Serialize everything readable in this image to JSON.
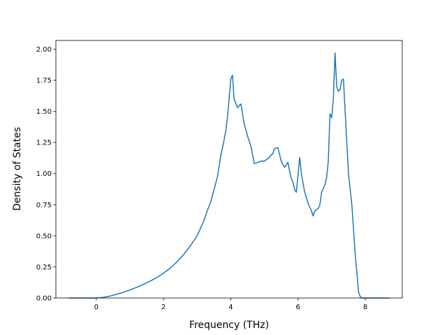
{
  "chart_data": {
    "type": "line",
    "title": "",
    "xlabel": "Frequency (THz)",
    "ylabel": "Density of States",
    "xlim": [
      -1.2,
      9.1
    ],
    "ylim": [
      0.0,
      2.07
    ],
    "x_ticks": [
      0,
      2,
      4,
      6,
      8
    ],
    "x_tick_labels": [
      "0",
      "2",
      "4",
      "6",
      "8"
    ],
    "y_ticks": [
      0.0,
      0.25,
      0.5,
      0.75,
      1.0,
      1.25,
      1.5,
      1.75,
      2.0
    ],
    "y_tick_labels": [
      "0.00",
      "0.25",
      "0.50",
      "0.75",
      "1.00",
      "1.25",
      "1.50",
      "1.75",
      "2.00"
    ],
    "grid": false,
    "series_color": "#1f77b4",
    "series": [
      {
        "x": [
          -0.8,
          -0.4,
          0.0,
          0.2,
          0.4,
          0.6,
          0.8,
          1.0,
          1.2,
          1.4,
          1.6,
          1.8,
          2.0,
          2.2,
          2.4,
          2.6,
          2.8,
          3.0,
          3.1,
          3.2,
          3.3,
          3.4,
          3.5,
          3.6,
          3.65,
          3.7,
          3.78,
          3.85,
          3.9,
          3.95,
          4.0,
          4.05,
          4.1,
          4.2,
          4.3,
          4.4,
          4.5,
          4.6,
          4.7,
          4.8,
          4.9,
          5.0,
          5.1,
          5.15,
          5.2,
          5.25,
          5.3,
          5.4,
          5.5,
          5.6,
          5.7,
          5.75,
          5.8,
          5.85,
          5.9,
          5.95,
          6.0,
          6.05,
          6.1,
          6.15,
          6.2,
          6.3,
          6.4,
          6.45,
          6.5,
          6.6,
          6.65,
          6.7,
          6.75,
          6.8,
          6.85,
          6.9,
          6.95,
          7.0,
          7.05,
          7.1,
          7.15,
          7.2,
          7.25,
          7.3,
          7.35,
          7.4,
          7.5,
          7.6,
          7.7,
          7.8,
          7.85,
          7.9,
          8.0,
          8.3,
          8.7
        ],
        "y": [
          0.0,
          0.0,
          0.0,
          0.005,
          0.015,
          0.03,
          0.045,
          0.065,
          0.085,
          0.11,
          0.135,
          0.165,
          0.2,
          0.24,
          0.29,
          0.35,
          0.42,
          0.5,
          0.56,
          0.62,
          0.7,
          0.77,
          0.87,
          0.97,
          1.05,
          1.14,
          1.24,
          1.34,
          1.45,
          1.6,
          1.76,
          1.79,
          1.6,
          1.53,
          1.56,
          1.4,
          1.3,
          1.22,
          1.08,
          1.09,
          1.1,
          1.1,
          1.12,
          1.13,
          1.15,
          1.16,
          1.2,
          1.21,
          1.1,
          1.05,
          1.09,
          1.02,
          0.96,
          0.93,
          0.87,
          0.85,
          0.99,
          1.13,
          1.0,
          0.92,
          0.85,
          0.76,
          0.7,
          0.66,
          0.7,
          0.72,
          0.75,
          0.85,
          0.88,
          0.91,
          0.97,
          1.1,
          1.48,
          1.45,
          1.6,
          1.97,
          1.7,
          1.66,
          1.68,
          1.75,
          1.76,
          1.5,
          1.0,
          0.75,
          0.35,
          0.05,
          0.01,
          0.0,
          0.0,
          0.0,
          0.0
        ]
      }
    ]
  }
}
